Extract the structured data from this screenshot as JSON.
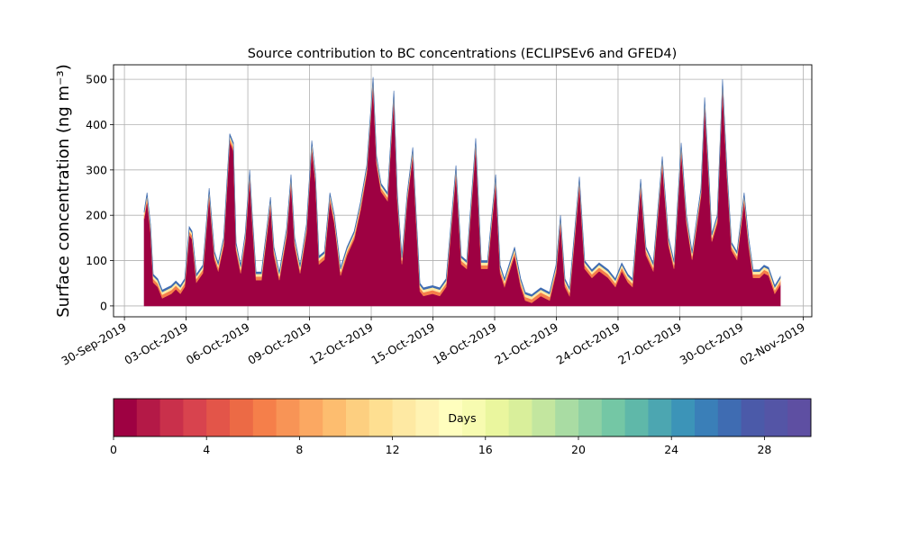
{
  "chart_data": {
    "type": "stacked_area",
    "title": "Source contribution to BC concentrations (ECLIPSEv6 and GFED4)",
    "y_label": "Surface concentration (ng m⁻³)",
    "x": [
      0.96,
      1.1,
      1.27,
      1.4,
      1.62,
      1.84,
      2.28,
      2.5,
      2.72,
      2.93,
      3.15,
      3.29,
      3.5,
      3.81,
      4.12,
      4.38,
      4.56,
      4.82,
      5.12,
      5.3,
      5.43,
      5.65,
      5.87,
      6.09,
      6.22,
      6.4,
      6.66,
      7.1,
      7.27,
      7.53,
      7.88,
      8.1,
      8.28,
      8.54,
      8.85,
      9.11,
      9.29,
      9.46,
      9.72,
      9.99,
      10.21,
      10.51,
      10.82,
      11.17,
      11.48,
      11.78,
      12.09,
      12.26,
      12.48,
      12.79,
      13.1,
      13.27,
      13.49,
      13.75,
      14.02,
      14.19,
      14.37,
      14.54,
      14.98,
      15.33,
      15.64,
      16.12,
      16.38,
      16.64,
      17.08,
      17.35,
      17.65,
      18.05,
      18.27,
      18.48,
      18.97,
      19.27,
      19.49,
      19.8,
      20.24,
      20.67,
      20.98,
      21.2,
      21.42,
      21.64,
      22.12,
      22.38,
      22.73,
      23.08,
      23.52,
      23.87,
      24.18,
      24.48,
      24.7,
      25.1,
      25.36,
      25.71,
      26.15,
      26.46,
      26.72,
      27.07,
      27.33,
      27.6,
      28.03,
      28.21,
      28.43,
      28.56,
      28.82,
      29.08,
      29.3,
      29.52,
      29.78,
      30.13,
      30.35,
      30.57,
      30.88,
      31.1,
      31.32,
      31.62,
      31.89
    ],
    "series": [
      {
        "color": "#9e0142",
        "values": [
          192,
          232,
          162,
          52,
          42,
          17,
          27,
          37,
          27,
          42,
          157,
          147,
          52,
          72,
          242,
          102,
          77,
          132,
          362,
          342,
          122,
          72,
          142,
          282,
          182,
          57,
          57,
          222,
          112,
          57,
          152,
          272,
          132,
          72,
          162,
          347,
          272,
          92,
          102,
          232,
          182,
          67,
          112,
          147,
          212,
          292,
          487,
          312,
          252,
          232,
          457,
          232,
          92,
          232,
          332,
          182,
          32,
          22,
          27,
          22,
          42,
          292,
          92,
          82,
          352,
          82,
          82,
          272,
          72,
          42,
          112,
          42,
          12,
          7,
          22,
          12,
          72,
          182,
          42,
          22,
          267,
          82,
          62,
          77,
          62,
          42,
          77,
          52,
          42,
          262,
          112,
          77,
          312,
          132,
          82,
          342,
          182,
          102,
          242,
          442,
          262,
          142,
          182,
          482,
          282,
          122,
          102,
          232,
          132,
          62,
          62,
          72,
          67,
          27,
          47
        ]
      },
      {
        "color": "#f57f4a",
        "values": [
          8,
          8,
          8,
          8,
          8,
          8,
          8,
          8,
          8,
          8,
          8,
          8,
          8,
          8,
          8,
          8,
          8,
          8,
          8,
          8,
          8,
          8,
          8,
          8,
          8,
          8,
          8,
          8,
          8,
          8,
          8,
          8,
          8,
          8,
          8,
          8,
          8,
          8,
          8,
          8,
          8,
          8,
          8,
          8,
          8,
          8,
          8,
          8,
          8,
          8,
          8,
          8,
          8,
          8,
          8,
          8,
          8,
          8,
          8,
          8,
          8,
          8,
          8,
          8,
          8,
          8,
          8,
          8,
          8,
          8,
          8,
          8,
          8,
          8,
          8,
          8,
          8,
          8,
          8,
          8,
          8,
          8,
          8,
          8,
          8,
          8,
          8,
          8,
          8,
          8,
          8,
          8,
          8,
          8,
          8,
          8,
          8,
          8,
          8,
          8,
          8,
          8,
          8,
          8,
          8,
          8,
          8,
          8,
          8,
          8,
          8,
          8,
          8,
          8,
          8
        ]
      },
      {
        "color": "#fee9a3",
        "values": [
          6,
          6,
          6,
          6,
          6,
          6,
          6,
          6,
          6,
          6,
          6,
          6,
          6,
          6,
          6,
          6,
          6,
          6,
          6,
          6,
          6,
          6,
          6,
          6,
          6,
          6,
          6,
          6,
          6,
          6,
          6,
          6,
          6,
          6,
          6,
          6,
          6,
          6,
          6,
          6,
          6,
          6,
          6,
          6,
          6,
          6,
          6,
          6,
          6,
          6,
          6,
          6,
          6,
          6,
          6,
          6,
          6,
          6,
          6,
          6,
          6,
          6,
          6,
          6,
          6,
          6,
          6,
          6,
          6,
          6,
          6,
          6,
          6,
          6,
          6,
          6,
          6,
          6,
          6,
          6,
          6,
          6,
          6,
          6,
          6,
          6,
          6,
          6,
          6,
          6,
          6,
          6,
          6,
          6,
          6,
          6,
          6,
          6,
          6,
          6,
          6,
          6,
          6,
          6,
          6,
          6,
          6,
          6,
          6,
          6,
          6,
          6,
          6,
          6,
          6
        ]
      },
      {
        "color": "#3f6cb2",
        "values": [
          4,
          4,
          4,
          4,
          4,
          4,
          4,
          4,
          4,
          4,
          4,
          4,
          4,
          4,
          4,
          4,
          4,
          4,
          4,
          4,
          4,
          4,
          4,
          4,
          4,
          4,
          4,
          4,
          4,
          4,
          4,
          4,
          4,
          4,
          4,
          4,
          4,
          4,
          4,
          4,
          4,
          4,
          4,
          4,
          4,
          4,
          4,
          4,
          4,
          4,
          4,
          4,
          4,
          4,
          4,
          4,
          4,
          4,
          4,
          4,
          4,
          4,
          4,
          4,
          4,
          4,
          4,
          4,
          4,
          4,
          4,
          4,
          4,
          4,
          4,
          4,
          4,
          4,
          4,
          4,
          4,
          4,
          4,
          4,
          4,
          4,
          4,
          4,
          4,
          4,
          4,
          4,
          4,
          4,
          4,
          4,
          4,
          4,
          4,
          4,
          4,
          4,
          4,
          4,
          4,
          4,
          4,
          4,
          4,
          4,
          4,
          4,
          4,
          4,
          4
        ]
      }
    ],
    "xlim": [
      -0.53,
      33.42
    ],
    "xticks": [
      {
        "value": 0,
        "label": "30-Sep-2019"
      },
      {
        "value": 3,
        "label": "03-Oct-2019"
      },
      {
        "value": 6,
        "label": "06-Oct-2019"
      },
      {
        "value": 9,
        "label": "09-Oct-2019"
      },
      {
        "value": 12,
        "label": "12-Oct-2019"
      },
      {
        "value": 15,
        "label": "15-Oct-2019"
      },
      {
        "value": 18,
        "label": "18-Oct-2019"
      },
      {
        "value": 21,
        "label": "21-Oct-2019"
      },
      {
        "value": 24,
        "label": "24-Oct-2019"
      },
      {
        "value": 27,
        "label": "27-Oct-2019"
      },
      {
        "value": 30,
        "label": "30-Oct-2019"
      },
      {
        "value": 33,
        "label": "02-Nov-2019"
      }
    ],
    "ylim": [
      -24,
      532
    ],
    "yticks": [
      0,
      100,
      200,
      300,
      400,
      500
    ],
    "grid": true,
    "colorbar": {
      "label": "Days",
      "lim": [
        0,
        30
      ],
      "ticks": [
        0,
        4,
        8,
        12,
        16,
        20,
        24,
        28
      ],
      "colors": [
        "#9e0142",
        "#b41947",
        "#c9304b",
        "#d8434e",
        "#e35549",
        "#ec6a45",
        "#f57f4a",
        "#f89456",
        "#fba862",
        "#fdbd6f",
        "#fdcf80",
        "#fedf91",
        "#fee9a3",
        "#fff3b3",
        "#fffebe",
        "#f7fbb0",
        "#eaf69e",
        "#d9ef9b",
        "#c3e69f",
        "#a9dca3",
        "#8ed1a4",
        "#74c7a5",
        "#5fb8a9",
        "#4ca6b1",
        "#3c94b8",
        "#3a7fb8",
        "#3f6cb2",
        "#4b5aa9",
        "#5455a6",
        "#5e4fa2"
      ]
    }
  }
}
